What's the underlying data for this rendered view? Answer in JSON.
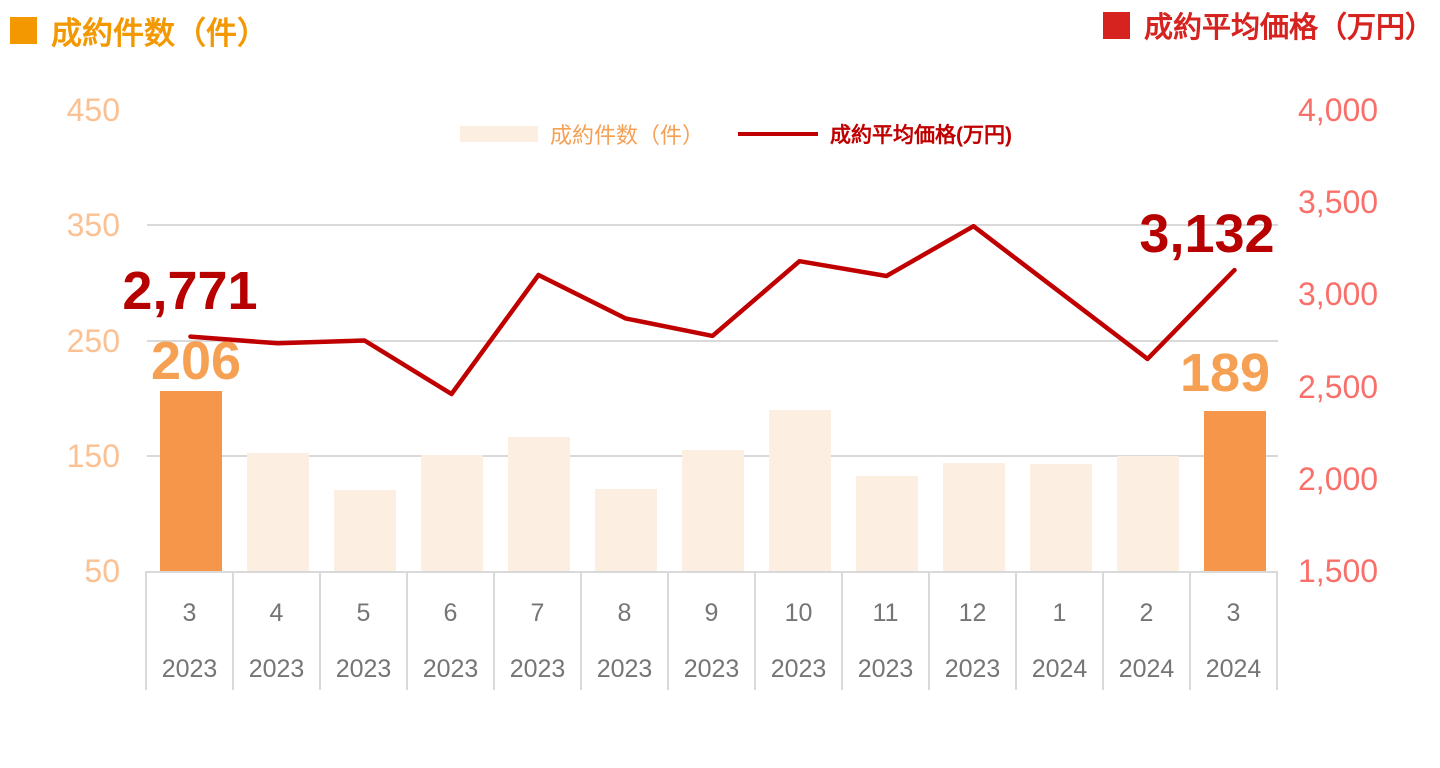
{
  "header": {
    "left_title": "成約件数（件）",
    "right_title": "成約平均価格（万円）"
  },
  "legend": {
    "bar_label": "成約件数（件）",
    "line_label": "成約平均価格(万円)"
  },
  "colors": {
    "bar_highlight": "#F5964B",
    "bar_normal": "#FCEEE1",
    "left_title": "#F39800",
    "left_axis_text": "#FBC193",
    "orange_label": "#F5A053",
    "line": "#C00000",
    "red_label": "#B70000",
    "right_title": "#D7231F",
    "right_axis_text": "#F9706B",
    "grid": "#D9D9D9",
    "axis_text": "#757575"
  },
  "chart_data": {
    "type": "bar",
    "subtype": "combo-bar-line-dual-axis",
    "categories": [
      {
        "month": "3",
        "year": "2023"
      },
      {
        "month": "4",
        "year": "2023"
      },
      {
        "month": "5",
        "year": "2023"
      },
      {
        "month": "6",
        "year": "2023"
      },
      {
        "month": "7",
        "year": "2023"
      },
      {
        "month": "8",
        "year": "2023"
      },
      {
        "month": "9",
        "year": "2023"
      },
      {
        "month": "10",
        "year": "2023"
      },
      {
        "month": "11",
        "year": "2023"
      },
      {
        "month": "12",
        "year": "2023"
      },
      {
        "month": "1",
        "year": "2024"
      },
      {
        "month": "2",
        "year": "2024"
      },
      {
        "month": "3",
        "year": "2024"
      }
    ],
    "series": [
      {
        "name": "成約件数（件）",
        "type": "bar",
        "axis": "left",
        "values": [
          206,
          152,
          120,
          151,
          166,
          121,
          155,
          190,
          132,
          144,
          143,
          150,
          189
        ]
      },
      {
        "name": "成約平均価格(万円)",
        "type": "line",
        "axis": "right",
        "values": [
          2771,
          2735,
          2750,
          2460,
          3105,
          2870,
          2775,
          3180,
          3100,
          3370,
          3010,
          2650,
          3132
        ]
      }
    ],
    "axis_left": {
      "title": "成約件数（件）",
      "range": [
        50,
        450
      ],
      "ticks": [
        {
          "value": 450,
          "label": "450"
        },
        {
          "value": 350,
          "label": "350"
        },
        {
          "value": 250,
          "label": "250"
        },
        {
          "value": 150,
          "label": "150"
        },
        {
          "value": 50,
          "label": "50"
        }
      ]
    },
    "axis_right": {
      "title": "成約平均価格（万円）",
      "range": [
        1500,
        4000
      ],
      "ticks": [
        {
          "value": 4000,
          "label": "4,000"
        },
        {
          "value": 3500,
          "label": "3,500"
        },
        {
          "value": 3000,
          "label": "3,000"
        },
        {
          "value": 2500,
          "label": "2,500"
        },
        {
          "value": 2000,
          "label": "2,000"
        },
        {
          "value": 1500,
          "label": "1,500"
        }
      ]
    },
    "gridlines_left_values": [
      350,
      250,
      150
    ],
    "highlight_bar_indexes": [
      0,
      12
    ],
    "annotations": {
      "price_first": "2,771",
      "count_first": "206",
      "price_last": "3,132",
      "count_last": "189"
    }
  }
}
